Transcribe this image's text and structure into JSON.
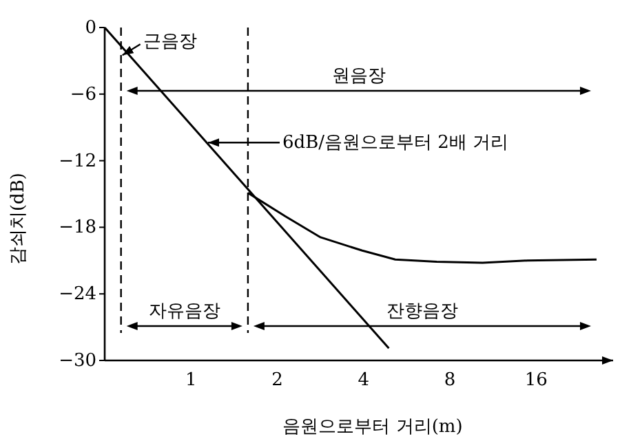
{
  "chart_data": {
    "type": "line",
    "xlabel": "음원으로부터 거리(m)",
    "ylabel": "감쇠치(dB)",
    "log": "x",
    "xlim": [
      0.5,
      29.7
    ],
    "xticks": [
      1,
      2,
      4,
      8,
      16
    ],
    "ylim": [
      -30,
      0
    ],
    "yticks": [
      {
        "value": 0,
        "label": "0"
      },
      {
        "value": -6,
        "label": "−6"
      },
      {
        "value": -12,
        "label": "−12"
      },
      {
        "value": -18,
        "label": "−18"
      },
      {
        "value": -24,
        "label": "−24"
      },
      {
        "value": -30,
        "label": "−30"
      }
    ],
    "grid": false,
    "marker": "none",
    "line_style": "solid",
    "series": [
      {
        "color": "#000000",
        "x": [
          0.5,
          4.9
        ],
        "values": [
          0,
          -28.9
        ]
      },
      {
        "color": "#000000",
        "x": [
          1.58,
          2.13,
          2.83,
          3.96,
          5.16,
          7.2,
          10.4,
          14.9,
          26
        ],
        "values": [
          -14.9,
          -17.0,
          -18.9,
          -20.1,
          -20.9,
          -21.1,
          -21.2,
          -21.0,
          -20.9
        ]
      }
    ],
    "ref_lines": [
      {
        "axis": "x",
        "value": 0.57,
        "line_style": "dashed"
      },
      {
        "axis": "x",
        "value": 1.58,
        "line_style": "dashed"
      }
    ],
    "annotations": [
      {
        "text": "근음장",
        "x": 0.57,
        "y": -2.5
      },
      "6dB/음원으로부터 2배 거리",
      "원음장",
      "자유음장",
      "잔향음장"
    ]
  }
}
